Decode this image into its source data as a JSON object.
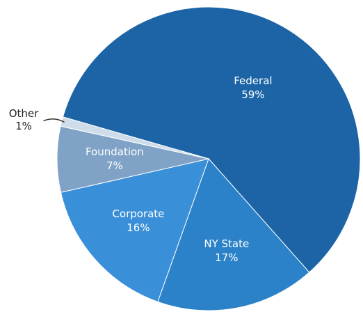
{
  "chart_data": {
    "type": "pie",
    "categories": [
      "Federal",
      "NY State",
      "Corporate",
      "Foundation",
      "Other"
    ],
    "values": [
      59,
      17,
      16,
      7,
      1
    ],
    "value_labels": [
      "59%",
      "17%",
      "16%",
      "7%",
      "1%"
    ],
    "colors": [
      "#1c64a6",
      "#2b82c8",
      "#3a90d8",
      "#7fa2c6",
      "#cfdcea"
    ]
  }
}
